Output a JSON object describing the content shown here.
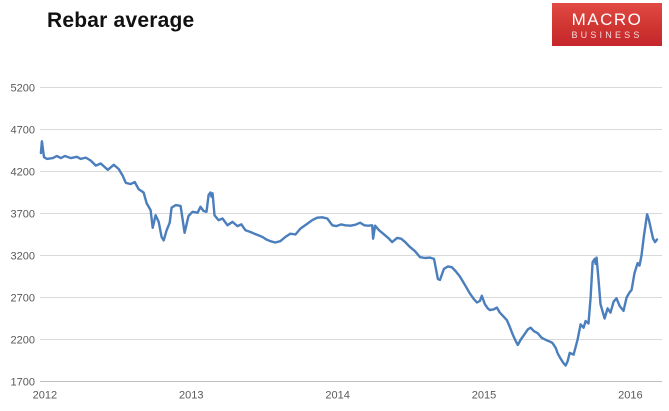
{
  "header": {
    "title": "Rebar average"
  },
  "logo": {
    "line1": "MACRO",
    "line2": "BUSINESS",
    "bg_top": "#e24a44",
    "bg_bottom": "#c5262c",
    "text_color": "#ffffff"
  },
  "chart_data": {
    "type": "line",
    "title": "Rebar average",
    "xlabel": "",
    "ylabel": "",
    "legend": "none",
    "grid": "horizontal",
    "gridline_color": "#d9d9d9",
    "baseline_color": "#bfbfbf",
    "axis_label_color": "#595959",
    "x_ticks": [
      "2012",
      "2013",
      "2014",
      "2015",
      "2016"
    ],
    "x_tick_years": [
      2012,
      2013,
      2014,
      2015,
      2016
    ],
    "y_ticks": [
      1700,
      2200,
      2700,
      3200,
      3700,
      4200,
      4700,
      5200
    ],
    "x_range": [
      2011.98,
      2016.23
    ],
    "y_range": [
      1700,
      5200
    ],
    "series": [
      {
        "name": "Rebar average",
        "color": "#4a7ebc",
        "points": [
          [
            2011.986,
            4420
          ],
          [
            2011.993,
            4560
          ],
          [
            2012.007,
            4370
          ],
          [
            2012.027,
            4350
          ],
          [
            2012.068,
            4360
          ],
          [
            2012.095,
            4385
          ],
          [
            2012.123,
            4360
          ],
          [
            2012.15,
            4385
          ],
          [
            2012.191,
            4360
          ],
          [
            2012.232,
            4375
          ],
          [
            2012.259,
            4350
          ],
          [
            2012.293,
            4365
          ],
          [
            2012.327,
            4330
          ],
          [
            2012.361,
            4270
          ],
          [
            2012.395,
            4295
          ],
          [
            2012.443,
            4220
          ],
          [
            2012.484,
            4280
          ],
          [
            2012.518,
            4230
          ],
          [
            2012.545,
            4150
          ],
          [
            2012.566,
            4065
          ],
          [
            2012.6,
            4050
          ],
          [
            2012.627,
            4075
          ],
          [
            2012.654,
            3990
          ],
          [
            2012.688,
            3950
          ],
          [
            2012.709,
            3820
          ],
          [
            2012.736,
            3740
          ],
          [
            2012.75,
            3530
          ],
          [
            2012.77,
            3680
          ],
          [
            2012.791,
            3600
          ],
          [
            2012.811,
            3420
          ],
          [
            2012.825,
            3380
          ],
          [
            2012.845,
            3500
          ],
          [
            2012.866,
            3590
          ],
          [
            2012.879,
            3770
          ],
          [
            2012.907,
            3800
          ],
          [
            2012.941,
            3790
          ],
          [
            2012.968,
            3470
          ],
          [
            2012.995,
            3670
          ],
          [
            2013.022,
            3720
          ],
          [
            2013.057,
            3710
          ],
          [
            2013.077,
            3780
          ],
          [
            2013.097,
            3730
          ],
          [
            2013.118,
            3720
          ],
          [
            2013.132,
            3920
          ],
          [
            2013.145,
            3950
          ],
          [
            2013.152,
            3900
          ],
          [
            2013.159,
            3940
          ],
          [
            2013.172,
            3680
          ],
          [
            2013.2,
            3620
          ],
          [
            2013.227,
            3640
          ],
          [
            2013.261,
            3560
          ],
          [
            2013.295,
            3600
          ],
          [
            2013.329,
            3550
          ],
          [
            2013.356,
            3570
          ],
          [
            2013.384,
            3500
          ],
          [
            2013.418,
            3480
          ],
          [
            2013.445,
            3460
          ],
          [
            2013.472,
            3440
          ],
          [
            2013.5,
            3420
          ],
          [
            2013.527,
            3390
          ],
          [
            2013.554,
            3370
          ],
          [
            2013.588,
            3355
          ],
          [
            2013.622,
            3370
          ],
          [
            2013.656,
            3420
          ],
          [
            2013.69,
            3460
          ],
          [
            2013.725,
            3450
          ],
          [
            2013.759,
            3520
          ],
          [
            2013.8,
            3570
          ],
          [
            2013.84,
            3620
          ],
          [
            2013.874,
            3650
          ],
          [
            2013.909,
            3655
          ],
          [
            2013.943,
            3640
          ],
          [
            2013.977,
            3560
          ],
          [
            2014.004,
            3550
          ],
          [
            2014.038,
            3570
          ],
          [
            2014.066,
            3560
          ],
          [
            2014.1,
            3555
          ],
          [
            2014.134,
            3565
          ],
          [
            2014.168,
            3590
          ],
          [
            2014.195,
            3560
          ],
          [
            2014.222,
            3555
          ],
          [
            2014.25,
            3560
          ],
          [
            2014.256,
            3400
          ],
          [
            2014.27,
            3555
          ],
          [
            2014.297,
            3500
          ],
          [
            2014.325,
            3460
          ],
          [
            2014.359,
            3410
          ],
          [
            2014.386,
            3360
          ],
          [
            2014.42,
            3410
          ],
          [
            2014.447,
            3400
          ],
          [
            2014.475,
            3360
          ],
          [
            2014.509,
            3300
          ],
          [
            2014.543,
            3250
          ],
          [
            2014.577,
            3180
          ],
          [
            2014.611,
            3170
          ],
          [
            2014.645,
            3175
          ],
          [
            2014.672,
            3160
          ],
          [
            2014.699,
            2920
          ],
          [
            2014.713,
            2910
          ],
          [
            2014.74,
            3040
          ],
          [
            2014.768,
            3070
          ],
          [
            2014.795,
            3060
          ],
          [
            2014.822,
            3010
          ],
          [
            2014.849,
            2950
          ],
          [
            2014.883,
            2850
          ],
          [
            2014.917,
            2750
          ],
          [
            2014.945,
            2680
          ],
          [
            2014.965,
            2640
          ],
          [
            2014.986,
            2660
          ],
          [
            2014.999,
            2720
          ],
          [
            2015.02,
            2620
          ],
          [
            2015.04,
            2570
          ],
          [
            2015.054,
            2550
          ],
          [
            2015.081,
            2560
          ],
          [
            2015.102,
            2580
          ],
          [
            2015.122,
            2520
          ],
          [
            2015.149,
            2470
          ],
          [
            2015.17,
            2430
          ],
          [
            2015.19,
            2350
          ],
          [
            2015.211,
            2255
          ],
          [
            2015.231,
            2180
          ],
          [
            2015.245,
            2135
          ],
          [
            2015.265,
            2200
          ],
          [
            2015.286,
            2250
          ],
          [
            2015.313,
            2320
          ],
          [
            2015.333,
            2340
          ],
          [
            2015.354,
            2300
          ],
          [
            2015.381,
            2275
          ],
          [
            2015.408,
            2220
          ],
          [
            2015.442,
            2190
          ],
          [
            2015.47,
            2170
          ],
          [
            2015.483,
            2155
          ],
          [
            2015.504,
            2100
          ],
          [
            2015.517,
            2035
          ],
          [
            2015.538,
            1970
          ],
          [
            2015.558,
            1915
          ],
          [
            2015.572,
            1890
          ],
          [
            2015.585,
            1940
          ],
          [
            2015.599,
            2040
          ],
          [
            2015.626,
            2020
          ],
          [
            2015.653,
            2200
          ],
          [
            2015.674,
            2380
          ],
          [
            2015.694,
            2340
          ],
          [
            2015.708,
            2420
          ],
          [
            2015.728,
            2390
          ],
          [
            2015.742,
            2700
          ],
          [
            2015.756,
            3120
          ],
          [
            2015.77,
            3160
          ],
          [
            2015.776,
            3100
          ],
          [
            2015.783,
            3175
          ],
          [
            2015.797,
            2900
          ],
          [
            2015.81,
            2620
          ],
          [
            2015.838,
            2450
          ],
          [
            2015.858,
            2570
          ],
          [
            2015.878,
            2520
          ],
          [
            2015.899,
            2650
          ],
          [
            2015.919,
            2690
          ],
          [
            2015.94,
            2600
          ],
          [
            2015.967,
            2540
          ],
          [
            2015.988,
            2700
          ],
          [
            2016.008,
            2760
          ],
          [
            2016.022,
            2790
          ],
          [
            2016.042,
            2990
          ],
          [
            2016.063,
            3110
          ],
          [
            2016.076,
            3080
          ],
          [
            2016.09,
            3200
          ],
          [
            2016.108,
            3450
          ],
          [
            2016.128,
            3690
          ],
          [
            2016.141,
            3620
          ],
          [
            2016.155,
            3510
          ],
          [
            2016.169,
            3400
          ],
          [
            2016.182,
            3360
          ],
          [
            2016.196,
            3390
          ]
        ]
      }
    ]
  }
}
